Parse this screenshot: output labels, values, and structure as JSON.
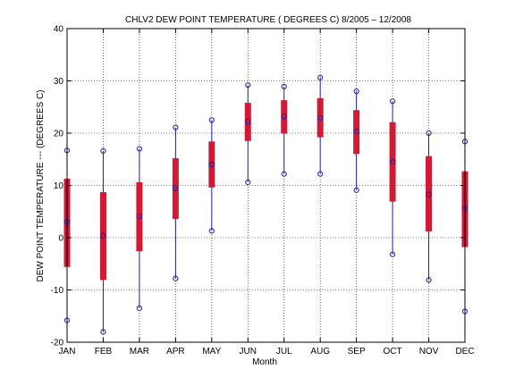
{
  "chart_data": {
    "type": "box",
    "title": "CHLV2  DEW POINT TEMPERATURE ( DEGREES C) 8/2005 – 12/2008",
    "xlabel": "Month",
    "ylabel": "DEW POINT TEMPERATURE --- (DEGREES C)",
    "ylim": [
      -20,
      40
    ],
    "yticks": [
      -20,
      -10,
      0,
      10,
      20,
      30,
      40
    ],
    "grid": true,
    "categories": [
      "JAN",
      "FEB",
      "MAR",
      "APR",
      "MAY",
      "JUN",
      "JUL",
      "AUG",
      "SEP",
      "OCT",
      "NOV",
      "DEC"
    ],
    "min": [
      -15.8,
      -18.0,
      -13.5,
      -7.8,
      1.3,
      10.6,
      12.2,
      12.2,
      9.1,
      -3.2,
      -8.1,
      -14.1
    ],
    "q1": [
      -5.6,
      -8.1,
      -2.6,
      3.6,
      9.6,
      18.5,
      19.9,
      19.2,
      16.0,
      6.9,
      1.2,
      -1.8
    ],
    "median": [
      3.0,
      0.4,
      4.1,
      9.5,
      14.0,
      22.2,
      23.2,
      22.9,
      20.3,
      14.5,
      8.3,
      5.6
    ],
    "q3": [
      11.3,
      8.7,
      10.6,
      15.2,
      18.4,
      25.8,
      26.3,
      26.7,
      24.4,
      22.1,
      15.6,
      12.7
    ],
    "max": [
      16.7,
      16.6,
      17.0,
      21.1,
      22.5,
      29.2,
      28.9,
      30.6,
      28.0,
      26.1,
      20.0,
      18.4
    ],
    "colors": {
      "box": "#d11a36",
      "whisker": "#1f1fa8",
      "marker": "#1f1fa8",
      "grid": "#000000"
    }
  }
}
